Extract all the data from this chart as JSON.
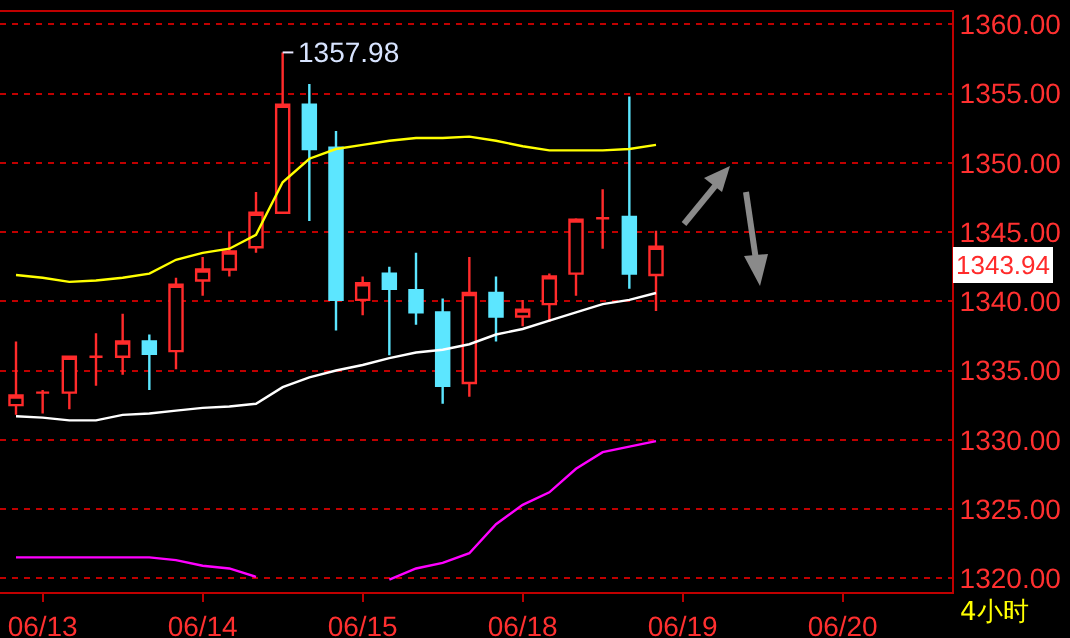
{
  "chart_data": {
    "type": "candlestick",
    "categories": [
      null,
      "06/13",
      null,
      null,
      null,
      null,
      null,
      "06/14",
      null,
      null,
      null,
      null,
      null,
      "06/15",
      null,
      null,
      null,
      null,
      null,
      "06/18",
      null,
      null,
      null,
      null,
      null,
      "06/19",
      null,
      null,
      null,
      null,
      null,
      "06/20",
      null,
      null,
      null,
      null
    ],
    "ohlc": [
      [
        1332.5,
        1337.1,
        1331.8,
        1333.2
      ],
      [
        1333.4,
        1333.6,
        1331.9,
        1333.4
      ],
      [
        1333.4,
        1336.0,
        1332.2,
        1336.0
      ],
      [
        1336.0,
        1337.7,
        1333.9,
        1336.0
      ],
      [
        1336.0,
        1339.1,
        1334.7,
        1337.1
      ],
      [
        1337.1,
        1337.6,
        1333.6,
        1336.2
      ],
      [
        1336.4,
        1341.7,
        1335.1,
        1341.2
      ],
      [
        1341.5,
        1343.2,
        1340.4,
        1342.3
      ],
      [
        1342.3,
        1345.0,
        1341.8,
        1343.6
      ],
      [
        1343.9,
        1347.9,
        1343.5,
        1346.4
      ],
      [
        1346.4,
        1357.98,
        1346.4,
        1354.2
      ],
      [
        1354.2,
        1355.7,
        1345.8,
        1351.0
      ],
      [
        1351.1,
        1352.3,
        1337.9,
        1340.1
      ],
      [
        1340.1,
        1341.8,
        1339.0,
        1341.3
      ],
      [
        1342.0,
        1342.5,
        1336.1,
        1340.9
      ],
      [
        1340.8,
        1343.5,
        1338.3,
        1339.2
      ],
      [
        1339.2,
        1340.2,
        1332.6,
        1333.9
      ],
      [
        1334.1,
        1343.2,
        1333.1,
        1340.6
      ],
      [
        1340.6,
        1341.8,
        1337.1,
        1338.9
      ],
      [
        1338.9,
        1340.1,
        1338.2,
        1339.4
      ],
      [
        1339.8,
        1342.0,
        1338.5,
        1341.8
      ],
      [
        1342.0,
        1346.0,
        1340.4,
        1345.9
      ],
      [
        1346.0,
        1348.1,
        1343.8,
        1346.0
      ],
      [
        1346.1,
        1354.8,
        1340.9,
        1342.0
      ],
      [
        1341.9,
        1345.1,
        1339.3,
        1343.94
      ],
      null,
      null,
      null,
      null,
      null,
      null,
      null,
      null,
      null,
      null,
      null
    ],
    "series": [
      {
        "type": "line",
        "color": "#ffff00",
        "values": [
          1341.9,
          1341.7,
          1341.4,
          1341.5,
          1341.7,
          1342.0,
          1343.0,
          1343.5,
          1343.8,
          1344.8,
          1348.6,
          1350.3,
          1351.0,
          1351.3,
          1351.6,
          1351.8,
          1351.8,
          1351.9,
          1351.6,
          1351.2,
          1350.9,
          1350.9,
          1350.9,
          1351.0,
          1351.3,
          null,
          null,
          null,
          null,
          null,
          null,
          null,
          null,
          null,
          null,
          null
        ]
      },
      {
        "type": "line",
        "color": "#ffffff",
        "values": [
          1331.7,
          1331.6,
          1331.4,
          1331.4,
          1331.8,
          1331.9,
          1332.1,
          1332.3,
          1332.4,
          1332.6,
          1333.8,
          1334.5,
          1335.0,
          1335.4,
          1335.9,
          1336.3,
          1336.5,
          1336.9,
          1337.6,
          1338.0,
          1338.6,
          1339.2,
          1339.8,
          1340.1,
          1340.6,
          null,
          null,
          null,
          null,
          null,
          null,
          null,
          null,
          null,
          null,
          null
        ]
      },
      {
        "type": "line",
        "color": "#ff00ff",
        "values": [
          1321.5,
          1321.5,
          1321.5,
          1321.5,
          1321.5,
          1321.5,
          1321.3,
          1320.9,
          1320.7,
          1320.1,
          null,
          null,
          null,
          null,
          1319.9,
          1320.7,
          1321.1,
          1321.8,
          1323.9,
          1325.3,
          1326.2,
          1327.9,
          1329.1,
          1329.5,
          1329.9,
          null,
          null,
          null,
          null,
          null,
          null,
          null,
          null,
          null,
          null,
          null
        ]
      }
    ],
    "ylim": [
      1319,
      1360.9
    ],
    "yticks": [
      {
        "value": 1320,
        "label": "1320.00"
      },
      {
        "value": 1325,
        "label": "1325.00"
      },
      {
        "value": 1330,
        "label": "1330.00"
      },
      {
        "value": 1335,
        "label": "1335.00"
      },
      {
        "value": 1340,
        "label": "1340.00"
      },
      {
        "value": 1345,
        "label": "1345.00"
      },
      {
        "value": 1350,
        "label": "1350.00"
      },
      {
        "value": 1355,
        "label": "1355.00"
      },
      {
        "value": 1360,
        "label": "1360.00"
      }
    ],
    "grid": "y",
    "annotations": [
      "1357.98",
      "1343.94",
      "4小时"
    ]
  }
}
